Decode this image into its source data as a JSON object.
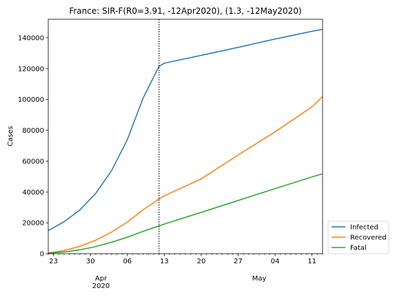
{
  "chart_data": {
    "type": "line",
    "title": "France: SIR-F(R0=3.91, -12Apr2020), (1.3, -12May2020)",
    "xlabel": "",
    "ylabel": "Cases",
    "xlim": [
      "2020-03-22",
      "2020-05-13"
    ],
    "ylim": [
      0,
      152000
    ],
    "yticks": [
      0,
      20000,
      40000,
      60000,
      80000,
      100000,
      120000,
      140000
    ],
    "xticks": [
      {
        "date": "2020-03-23",
        "label": "23"
      },
      {
        "date": "2020-03-30",
        "label": "30"
      },
      {
        "date": "2020-04-06",
        "label": "06"
      },
      {
        "date": "2020-04-13",
        "label": "13"
      },
      {
        "date": "2020-04-20",
        "label": "20"
      },
      {
        "date": "2020-04-27",
        "label": "27"
      },
      {
        "date": "2020-05-04",
        "label": "04"
      },
      {
        "date": "2020-05-11",
        "label": "11"
      }
    ],
    "month_labels": [
      {
        "date": "2020-04-01",
        "label": "Apr",
        "sublabel": "2020"
      },
      {
        "date": "2020-05-01",
        "label": "May",
        "sublabel": ""
      }
    ],
    "vline": {
      "date": "2020-04-12",
      "style": "dotted",
      "color": "#000000"
    },
    "legend": {
      "position": "outside-bottom-right"
    },
    "grid": false,
    "x": [
      "2020-03-22",
      "2020-03-25",
      "2020-03-28",
      "2020-03-31",
      "2020-04-03",
      "2020-04-06",
      "2020-04-09",
      "2020-04-12",
      "2020-04-13",
      "2020-04-20",
      "2020-04-27",
      "2020-05-04",
      "2020-05-11",
      "2020-05-13"
    ],
    "series": [
      {
        "name": "Infected",
        "color": "#1f77b4",
        "values": [
          15000,
          20700,
          28400,
          39100,
          53800,
          74000,
          101000,
          121500,
          123500,
          128600,
          133800,
          139200,
          144200,
          145500
        ]
      },
      {
        "name": "Recovered",
        "color": "#ff7f0e",
        "values": [
          500,
          2000,
          4800,
          8800,
          14000,
          20500,
          28500,
          35500,
          37500,
          48500,
          64000,
          79000,
          95200,
          101800
        ]
      },
      {
        "name": "Fatal",
        "color": "#2ca02c",
        "values": [
          300,
          1100,
          2500,
          4600,
          7400,
          10700,
          14500,
          18000,
          19200,
          26800,
          34500,
          42200,
          49800,
          51800
        ]
      }
    ]
  }
}
